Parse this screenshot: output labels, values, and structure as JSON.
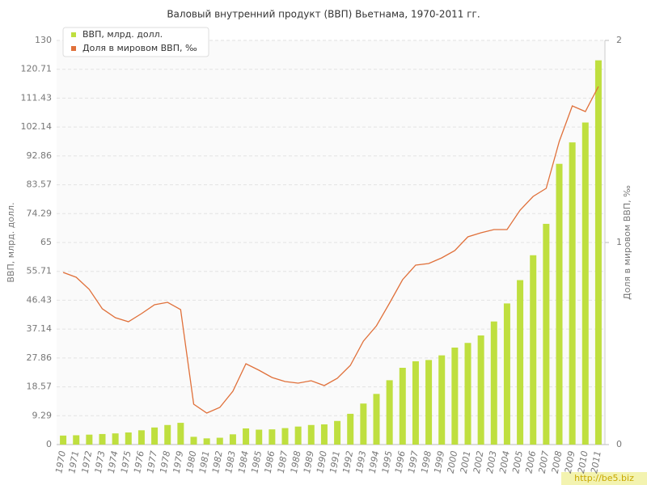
{
  "chart_data": {
    "type": "bar_line",
    "title": "Валовый внутренний продукт (ВВП) Вьетнама, 1970-2011 гг.",
    "y_label": "ВВП, млрд. долл.",
    "y2_label": "Доля в мировом ВВП, ‰",
    "watermark": "http://be5.biz",
    "categories": [
      "1970",
      "1971",
      "1972",
      "1973",
      "1974",
      "1975",
      "1976",
      "1977",
      "1978",
      "1979",
      "1980",
      "1981",
      "1982",
      "1983",
      "1984",
      "1985",
      "1986",
      "1987",
      "1988",
      "1989",
      "1990",
      "1991",
      "1992",
      "1993",
      "1994",
      "1995",
      "1996",
      "1997",
      "1998",
      "1999",
      "2000",
      "2001",
      "2002",
      "2003",
      "2004",
      "2005",
      "2006",
      "2007",
      "2008",
      "2009",
      "2010",
      "2011"
    ],
    "series": [
      {
        "name": "ВВП, млрд. долл.",
        "color": "#bfdf3f",
        "type": "bar",
        "values": [
          2.9,
          3.0,
          3.2,
          3.4,
          3.6,
          3.9,
          4.6,
          5.5,
          6.3,
          7.0,
          2.5,
          2.0,
          2.2,
          3.3,
          5.2,
          4.8,
          4.9,
          5.3,
          5.8,
          6.3,
          6.5,
          7.6,
          9.9,
          13.2,
          16.3,
          20.7,
          24.7,
          26.8,
          27.2,
          28.7,
          31.2,
          32.7,
          35.1,
          39.6,
          45.4,
          52.9,
          60.9,
          71.0,
          90.3,
          97.2,
          103.6,
          123.6
        ]
      },
      {
        "name": "Доля в мировом ВВП, ‰",
        "color": "#e0703a",
        "type": "line",
        "axis": "y2",
        "values": [
          0.852,
          0.828,
          0.768,
          0.672,
          0.628,
          0.608,
          0.648,
          0.692,
          0.704,
          0.668,
          0.2,
          0.156,
          0.184,
          0.264,
          0.4,
          0.368,
          0.332,
          0.312,
          0.304,
          0.316,
          0.292,
          0.328,
          0.392,
          0.512,
          0.588,
          0.7,
          0.816,
          0.888,
          0.896,
          0.924,
          0.96,
          1.028,
          1.048,
          1.064,
          1.064,
          1.16,
          1.228,
          1.268,
          1.5,
          1.676,
          1.648,
          1.772
        ]
      }
    ],
    "ylim": [
      0,
      130
    ],
    "yticks": [
      0,
      9.29,
      18.57,
      27.86,
      37.14,
      46.43,
      55.71,
      65,
      74.29,
      83.57,
      92.86,
      102.14,
      111.43,
      120.71,
      130
    ],
    "y2lim": [
      0,
      2
    ],
    "y2ticks": [
      0,
      1,
      2
    ],
    "grid": true,
    "legend": "top-left"
  }
}
